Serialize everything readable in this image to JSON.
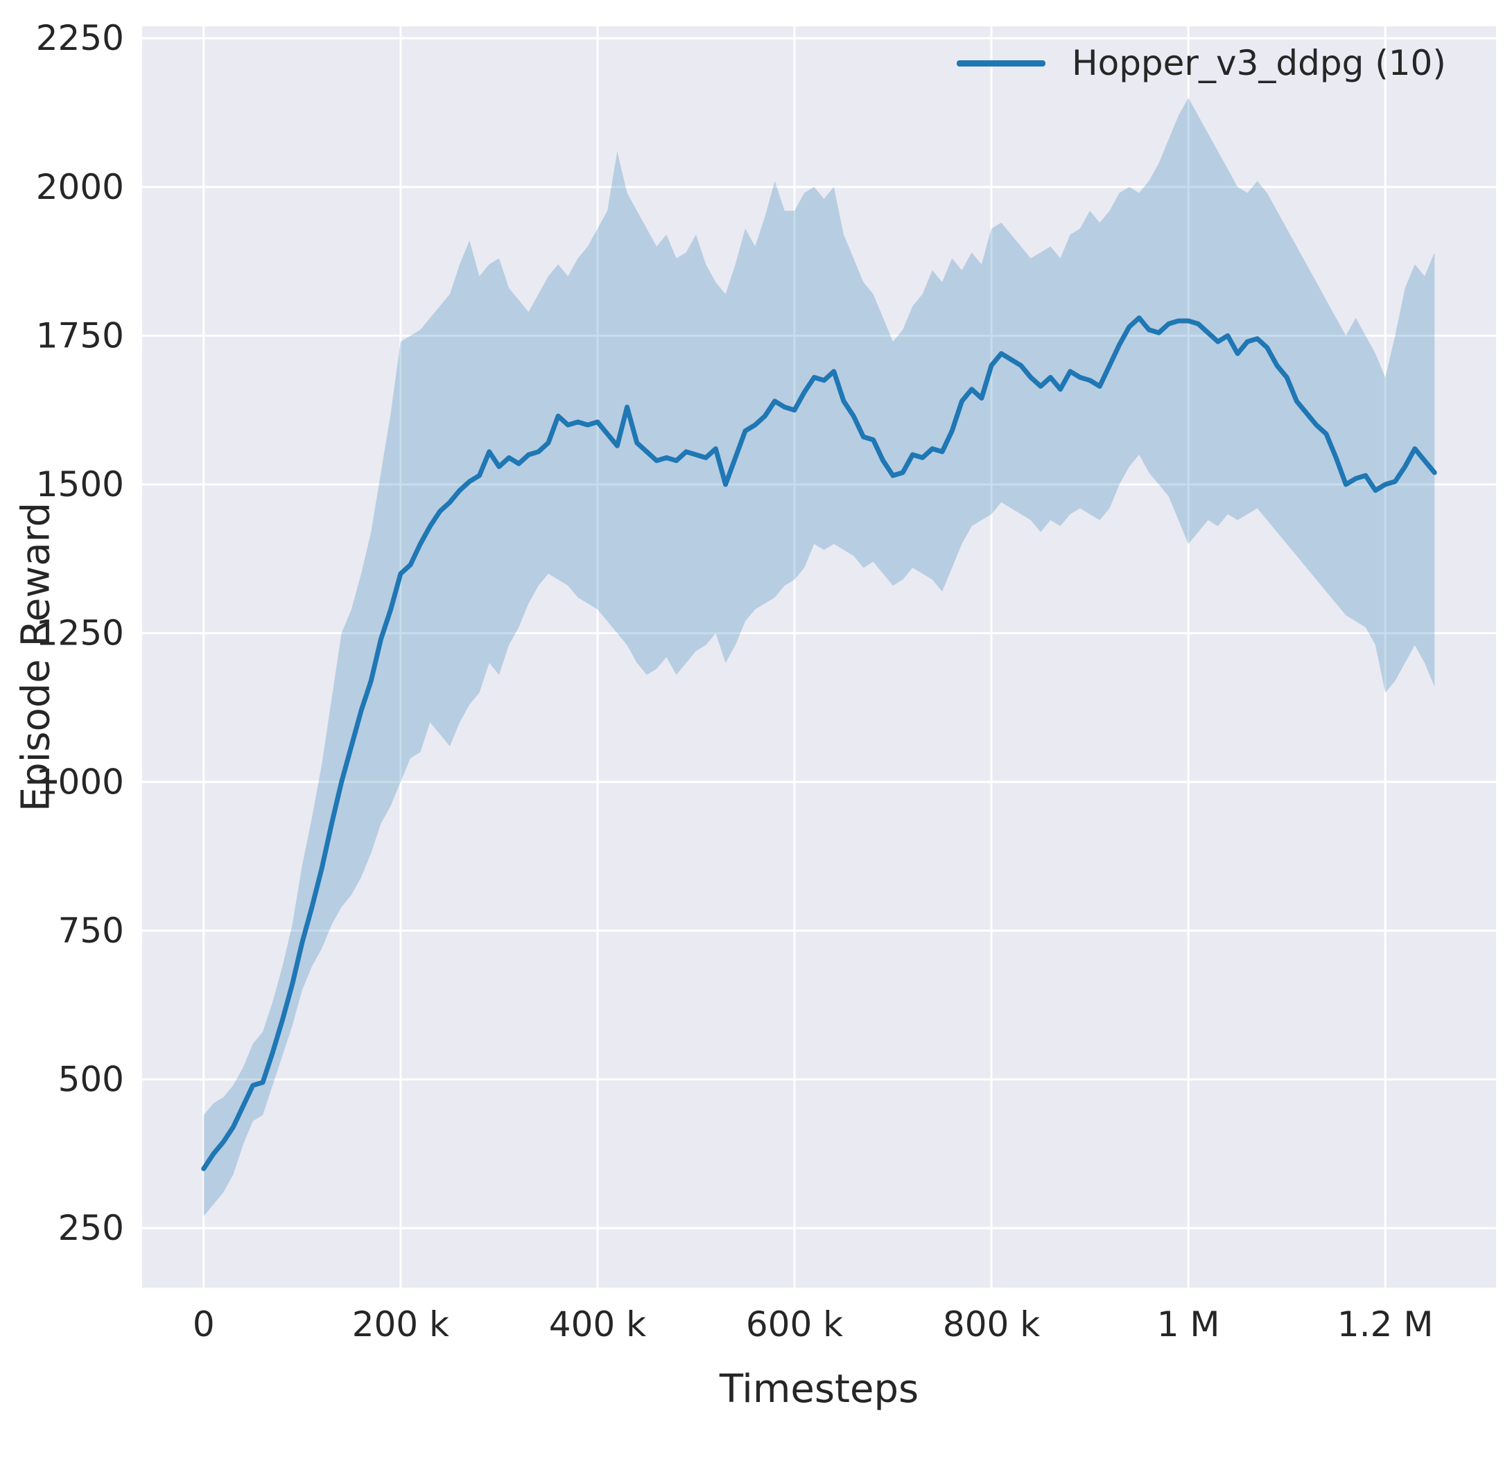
{
  "figure": {
    "background": "#ffffff",
    "plot_background": "#eaeaf2",
    "grid_color": "#ffffff",
    "tick_color": "#262626",
    "label_color": "#262626"
  },
  "chart_data": {
    "type": "line",
    "title": "",
    "xlabel": "Timesteps",
    "ylabel": "Episode Reward",
    "grid": true,
    "legend_position": "upper right",
    "xlim_k": [
      -62.5,
      1312.5
    ],
    "ylim": [
      150,
      2270
    ],
    "xticks": [
      {
        "value_k": 0,
        "label": "0"
      },
      {
        "value_k": 200,
        "label": "200 k"
      },
      {
        "value_k": 400,
        "label": "400 k"
      },
      {
        "value_k": 600,
        "label": "600 k"
      },
      {
        "value_k": 800,
        "label": "800 k"
      },
      {
        "value_k": 1000,
        "label": "1 M"
      },
      {
        "value_k": 1200,
        "label": "1.2 M"
      }
    ],
    "yticks": [
      {
        "value": 250,
        "label": "250"
      },
      {
        "value": 500,
        "label": "500"
      },
      {
        "value": 750,
        "label": "750"
      },
      {
        "value": 1000,
        "label": "1000"
      },
      {
        "value": 1250,
        "label": "1250"
      },
      {
        "value": 1500,
        "label": "1500"
      },
      {
        "value": 1750,
        "label": "1750"
      },
      {
        "value": 2000,
        "label": "2000"
      },
      {
        "value": 2250,
        "label": "2250"
      }
    ],
    "x_k": [
      0,
      10,
      20,
      30,
      40,
      50,
      60,
      70,
      80,
      90,
      100,
      110,
      120,
      130,
      140,
      150,
      160,
      170,
      180,
      190,
      200,
      210,
      220,
      230,
      240,
      250,
      260,
      270,
      280,
      290,
      300,
      310,
      320,
      330,
      340,
      350,
      360,
      370,
      380,
      390,
      400,
      410,
      420,
      430,
      440,
      450,
      460,
      470,
      480,
      490,
      500,
      510,
      520,
      530,
      540,
      550,
      560,
      570,
      580,
      590,
      600,
      610,
      620,
      630,
      640,
      650,
      660,
      670,
      680,
      690,
      700,
      710,
      720,
      730,
      740,
      750,
      760,
      770,
      780,
      790,
      800,
      810,
      820,
      830,
      840,
      850,
      860,
      870,
      880,
      890,
      900,
      910,
      920,
      930,
      940,
      950,
      960,
      970,
      980,
      990,
      1000,
      1010,
      1020,
      1030,
      1040,
      1050,
      1060,
      1070,
      1080,
      1090,
      1100,
      1110,
      1120,
      1130,
      1140,
      1150,
      1160,
      1170,
      1180,
      1190,
      1200,
      1210,
      1220,
      1230,
      1240,
      1250
    ],
    "series": [
      {
        "name": "Hopper_v3_ddpg (10)",
        "color": "#1f77b4",
        "band_alpha": 0.25,
        "mean": [
          350,
          375,
          395,
          420,
          455,
          490,
          495,
          545,
          600,
          660,
          730,
          790,
          855,
          930,
          1000,
          1060,
          1120,
          1170,
          1240,
          1290,
          1350,
          1365,
          1400,
          1430,
          1455,
          1470,
          1490,
          1505,
          1515,
          1555,
          1530,
          1545,
          1535,
          1550,
          1555,
          1570,
          1615,
          1600,
          1605,
          1600,
          1605,
          1585,
          1565,
          1630,
          1570,
          1555,
          1540,
          1545,
          1540,
          1555,
          1550,
          1545,
          1560,
          1500,
          1545,
          1590,
          1600,
          1615,
          1640,
          1630,
          1625,
          1655,
          1680,
          1675,
          1690,
          1640,
          1615,
          1580,
          1575,
          1540,
          1515,
          1520,
          1550,
          1545,
          1560,
          1555,
          1590,
          1640,
          1660,
          1645,
          1700,
          1720,
          1710,
          1700,
          1680,
          1665,
          1680,
          1660,
          1690,
          1680,
          1675,
          1665,
          1700,
          1735,
          1765,
          1780,
          1760,
          1755,
          1770,
          1775,
          1775,
          1770,
          1755,
          1740,
          1750,
          1720,
          1740,
          1745,
          1730,
          1700,
          1680,
          1640,
          1620,
          1600,
          1585,
          1545,
          1500,
          1510,
          1515,
          1490,
          1500,
          1505,
          1530,
          1560,
          1540,
          1520
        ],
        "band_lower": [
          270,
          290,
          310,
          340,
          390,
          430,
          440,
          490,
          540,
          590,
          650,
          690,
          720,
          760,
          790,
          810,
          840,
          880,
          930,
          960,
          1000,
          1040,
          1050,
          1100,
          1080,
          1060,
          1100,
          1130,
          1150,
          1200,
          1180,
          1230,
          1260,
          1300,
          1330,
          1350,
          1340,
          1330,
          1310,
          1300,
          1290,
          1270,
          1250,
          1230,
          1200,
          1180,
          1190,
          1210,
          1180,
          1200,
          1220,
          1230,
          1250,
          1200,
          1230,
          1270,
          1290,
          1300,
          1310,
          1330,
          1340,
          1360,
          1400,
          1390,
          1400,
          1390,
          1380,
          1360,
          1370,
          1350,
          1330,
          1340,
          1360,
          1350,
          1340,
          1320,
          1360,
          1400,
          1430,
          1440,
          1450,
          1470,
          1460,
          1450,
          1440,
          1420,
          1440,
          1430,
          1450,
          1460,
          1450,
          1440,
          1460,
          1500,
          1530,
          1550,
          1520,
          1500,
          1480,
          1440,
          1400,
          1420,
          1440,
          1430,
          1450,
          1440,
          1450,
          1460,
          1440,
          1420,
          1400,
          1380,
          1360,
          1340,
          1320,
          1300,
          1280,
          1270,
          1260,
          1230,
          1150,
          1170,
          1200,
          1230,
          1200,
          1160
        ],
        "band_upper": [
          440,
          460,
          470,
          490,
          520,
          560,
          580,
          630,
          690,
          760,
          860,
          940,
          1030,
          1140,
          1250,
          1290,
          1350,
          1420,
          1520,
          1620,
          1740,
          1750,
          1760,
          1780,
          1800,
          1820,
          1870,
          1910,
          1850,
          1870,
          1880,
          1830,
          1810,
          1790,
          1820,
          1850,
          1870,
          1850,
          1880,
          1900,
          1930,
          1960,
          2060,
          1990,
          1960,
          1930,
          1900,
          1920,
          1880,
          1890,
          1920,
          1870,
          1840,
          1820,
          1870,
          1930,
          1900,
          1950,
          2010,
          1960,
          1960,
          1990,
          2000,
          1980,
          2000,
          1920,
          1880,
          1840,
          1820,
          1780,
          1740,
          1760,
          1800,
          1820,
          1860,
          1840,
          1880,
          1860,
          1890,
          1870,
          1930,
          1940,
          1920,
          1900,
          1880,
          1890,
          1900,
          1880,
          1920,
          1930,
          1960,
          1940,
          1960,
          1990,
          2000,
          1990,
          2010,
          2040,
          2080,
          2120,
          2150,
          2120,
          2090,
          2060,
          2030,
          2000,
          1990,
          2010,
          1990,
          1960,
          1930,
          1900,
          1870,
          1840,
          1810,
          1780,
          1750,
          1780,
          1750,
          1720,
          1680,
          1750,
          1830,
          1870,
          1850,
          1890
        ]
      }
    ]
  }
}
